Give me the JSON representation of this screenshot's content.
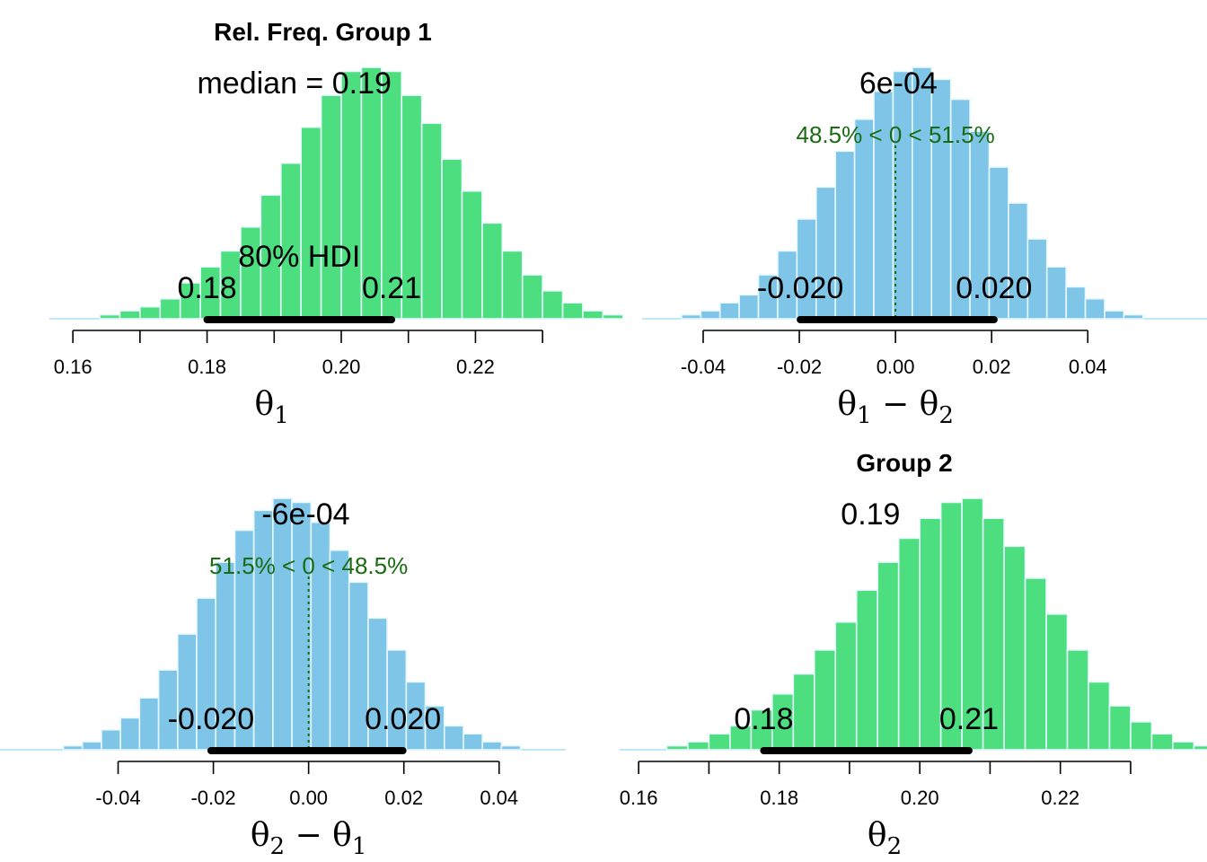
{
  "colors": {
    "green_fill": "#4ddf7f",
    "blue_fill": "#7ec5e8",
    "bar_edge": "#e8f8ff",
    "tail_line": "#bfe8f8",
    "hdi_bar": "#000000",
    "compare_text": "#1a6b12",
    "axis": "#000000"
  },
  "chart_data": [
    {
      "name": "top-left",
      "type": "histogram",
      "title": "Rel. Freq. Group 1",
      "xlabel": {
        "greek": "θ",
        "sub": "1",
        "op": "",
        "greek2": "",
        "sub2": ""
      },
      "center_text": "median = 0.19",
      "median": 0.193,
      "hdi_label": "80% HDI",
      "hdi_low_label": "0.18",
      "hdi_high_label": "0.21",
      "hdi": [
        0.18,
        0.2075
      ],
      "compare_text": "",
      "compare_value": null,
      "fill": "green",
      "xlim": [
        0.1565,
        0.2348
      ],
      "ticks": [
        0.16,
        0.17,
        0.18,
        0.19,
        0.2,
        0.21,
        0.22,
        0.23
      ],
      "tick_labels": [
        {
          "value": 0.16,
          "label": "0.16"
        },
        {
          "value": 0.18,
          "label": "0.18"
        },
        {
          "value": 0.2,
          "label": "0.20"
        },
        {
          "value": 0.22,
          "label": "0.22"
        }
      ],
      "bin_start": 0.164,
      "bin_width": 0.003,
      "heights": [
        1,
        2,
        3,
        5,
        9,
        13,
        17,
        23,
        31,
        39,
        48,
        56,
        62,
        63,
        62,
        56,
        49,
        40,
        32,
        24,
        17,
        11,
        7,
        4,
        2,
        1
      ],
      "ymax": 63
    },
    {
      "name": "top-right",
      "type": "histogram",
      "title": "",
      "xlabel": {
        "greek": "θ",
        "sub": "1",
        "op": " − ",
        "greek2": "θ",
        "sub2": "2"
      },
      "center_text": "6e-04",
      "median": 0.0006,
      "hdi_label": "",
      "hdi_low_label": "-0.020",
      "hdi_high_label": "0.020",
      "hdi": [
        -0.0198,
        0.0205
      ],
      "compare_text": "48.5% < 0 < 51.5%",
      "compare_value": 0,
      "fill": "blue",
      "xlim": [
        -0.0527,
        0.0648
      ],
      "ticks": [
        -0.04,
        -0.02,
        0.0,
        0.02,
        0.04
      ],
      "tick_labels": [
        {
          "value": -0.04,
          "label": "-0.04"
        },
        {
          "value": -0.02,
          "label": "-0.02"
        },
        {
          "value": 0.0,
          "label": "0.00"
        },
        {
          "value": 0.02,
          "label": "0.02"
        },
        {
          "value": 0.04,
          "label": "0.04"
        }
      ],
      "bin_start": -0.0445,
      "bin_width": 0.004,
      "heights": [
        1,
        2,
        4,
        6,
        11,
        17,
        25,
        33,
        42,
        50,
        57,
        62,
        63,
        60,
        55,
        47,
        38,
        29,
        20,
        13,
        8,
        5,
        2,
        1
      ],
      "ymax": 63
    },
    {
      "name": "bottom-left",
      "type": "histogram",
      "title": "",
      "xlabel": {
        "greek": "θ",
        "sub": "2",
        "op": " − ",
        "greek2": "θ",
        "sub2": "1"
      },
      "center_text": "-6e-04",
      "median": -0.0006,
      "hdi_label": "",
      "hdi_low_label": "-0.020",
      "hdi_high_label": "0.020",
      "hdi": [
        -0.0205,
        0.0198
      ],
      "compare_text": "51.5% < 0 < 48.5%",
      "compare_value": 0,
      "fill": "blue",
      "xlim": [
        -0.0648,
        0.054
      ],
      "ticks": [
        -0.04,
        -0.02,
        0.0,
        0.02,
        0.04
      ],
      "tick_labels": [
        {
          "value": -0.04,
          "label": "-0.04"
        },
        {
          "value": -0.02,
          "label": "-0.02"
        },
        {
          "value": 0.0,
          "label": "0.00"
        },
        {
          "value": 0.02,
          "label": "0.02"
        },
        {
          "value": 0.04,
          "label": "0.04"
        }
      ],
      "bin_start": -0.0515,
      "bin_width": 0.004,
      "heights": [
        1,
        2,
        5,
        8,
        13,
        20,
        29,
        38,
        47,
        55,
        60,
        63,
        62,
        57,
        50,
        42,
        33,
        25,
        17,
        11,
        6,
        4,
        2,
        1
      ],
      "ymax": 63
    },
    {
      "name": "bottom-right",
      "type": "histogram",
      "title": "Group 2",
      "xlabel": {
        "greek": "θ",
        "sub": "2",
        "op": "",
        "greek2": "",
        "sub2": ""
      },
      "center_text": "0.19",
      "median": 0.193,
      "hdi_label": "",
      "hdi_low_label": "0.18",
      "hdi_high_label": "0.21",
      "hdi": [
        0.1778,
        0.207
      ],
      "compare_text": "",
      "compare_value": null,
      "fill": "green",
      "xlim": [
        0.1573,
        0.2355
      ],
      "ticks": [
        0.16,
        0.17,
        0.18,
        0.19,
        0.2,
        0.21,
        0.22,
        0.23
      ],
      "tick_labels": [
        {
          "value": 0.16,
          "label": "0.16"
        },
        {
          "value": 0.18,
          "label": "0.18"
        },
        {
          "value": 0.2,
          "label": "0.20"
        },
        {
          "value": 0.22,
          "label": "0.22"
        }
      ],
      "bin_start": 0.164,
      "bin_width": 0.003,
      "heights": [
        1,
        2,
        4,
        6,
        10,
        14,
        19,
        25,
        32,
        40,
        47,
        53,
        58,
        62,
        63,
        58,
        51,
        43,
        34,
        25,
        17,
        11,
        7,
        4,
        2,
        1
      ],
      "ymax": 63
    }
  ]
}
